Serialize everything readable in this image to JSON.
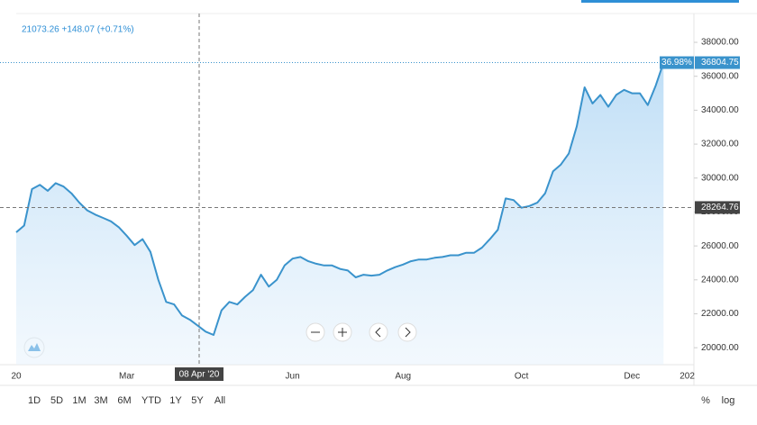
{
  "chart_data": {
    "type": "area",
    "header": "21073.26 +148.07 (+0.71%)",
    "color": "#3a93cc",
    "categories": [
      "20",
      null,
      null,
      null,
      null,
      null,
      null,
      null,
      null,
      null,
      null,
      null,
      null,
      null,
      "Mar",
      null,
      null,
      null,
      null,
      null,
      null,
      null,
      null,
      null,
      null,
      null,
      null,
      null,
      null,
      null,
      null,
      null,
      null,
      null,
      null,
      "Jun",
      null,
      null,
      null,
      null,
      null,
      null,
      null,
      null,
      null,
      null,
      null,
      null,
      null,
      "Aug",
      null,
      null,
      null,
      null,
      null,
      null,
      null,
      null,
      null,
      null,
      null,
      null,
      null,
      null,
      "Oct",
      null,
      null,
      null,
      null,
      null,
      null,
      null,
      null,
      null,
      null,
      null,
      null,
      null,
      "Dec",
      null,
      null,
      null,
      null,
      null,
      null,
      "202"
    ],
    "values": [
      26800,
      27200,
      29350,
      29600,
      29250,
      29700,
      29500,
      29100,
      28550,
      28100,
      27850,
      27650,
      27450,
      27100,
      26600,
      26050,
      26400,
      25650,
      24000,
      22700,
      22550,
      21900,
      21650,
      21300,
      20950,
      20750,
      22200,
      22700,
      22550,
      23000,
      23400,
      24300,
      23600,
      24000,
      24850,
      25250,
      25350,
      25100,
      24950,
      24850,
      24850,
      24650,
      24550,
      24150,
      24300,
      24250,
      24300,
      24550,
      24750,
      24900,
      25100,
      25200,
      25200,
      25300,
      25350,
      25450,
      25450,
      25600,
      25600,
      25900,
      26400,
      26950,
      28800,
      28700,
      28250,
      28350,
      28550,
      29100,
      30400,
      30800,
      31450,
      33050,
      35350,
      34400,
      34900,
      34200,
      34900,
      35200,
      35000,
      35000,
      34300,
      35450,
      36804.75,
      null,
      null,
      null
    ],
    "change_label": "36.98%",
    "crosshair": {
      "label": "08 Apr '20",
      "value": 28264.76
    },
    "ylim": [
      19000,
      39700
    ],
    "yticks": [
      {
        "value": 20000,
        "label": "20000.00"
      },
      {
        "value": 22000,
        "label": "22000.00"
      },
      {
        "value": 24000,
        "label": "24000.00"
      },
      {
        "value": 26000,
        "label": "26000.00"
      },
      {
        "value": 28000,
        "label": "28000.00"
      },
      {
        "value": 30000,
        "label": "30000.00"
      },
      {
        "value": 32000,
        "label": "32000.00"
      },
      {
        "value": 34000,
        "label": "34000.00"
      },
      {
        "value": 36000,
        "label": "36000.00"
      },
      {
        "value": 38000,
        "label": "38000.00"
      }
    ],
    "ranges": [
      "1D",
      "5D",
      "1M",
      "3M",
      "6M",
      "YTD",
      "1Y",
      "5Y",
      "All"
    ],
    "scale_options": [
      "%",
      "log"
    ]
  }
}
